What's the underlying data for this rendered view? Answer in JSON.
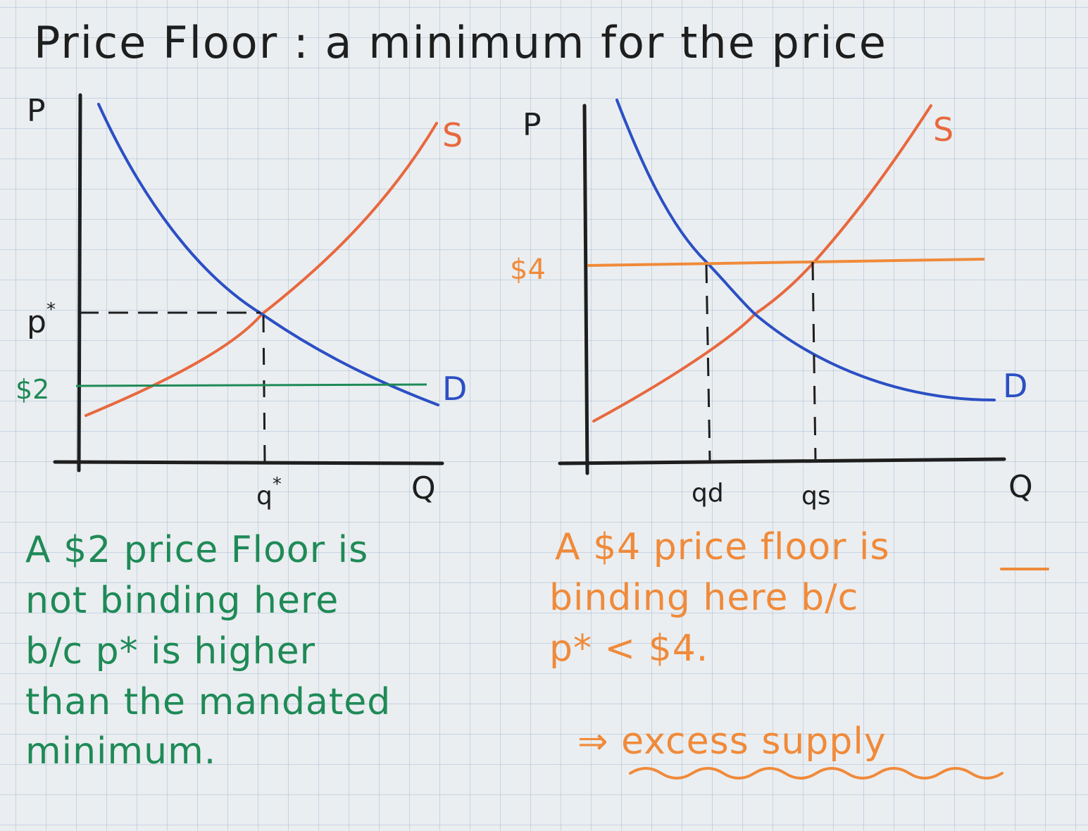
{
  "title": "Price Floor : a minimum for the price",
  "left_chart": {
    "y_label": "P",
    "x_label": "Q",
    "supply_label": "S",
    "demand_label": "D",
    "price_label": "p",
    "price_label_sup": "*",
    "quantity_label": "q",
    "quantity_label_sup": "*",
    "floor_label": "$2",
    "floor_color": "#1f8a57",
    "note_lines": [
      "A $2 price Floor is",
      "not binding here",
      "b/c p* is higher",
      "than the mandated",
      "minimum."
    ]
  },
  "right_chart": {
    "y_label": "P",
    "x_label": "Q",
    "supply_label": "S",
    "demand_label": "D",
    "floor_label": "$4",
    "floor_color": "#f08a3a",
    "qd_label": "qd",
    "qs_label": "qs",
    "note_lines": [
      "A $4 price floor is",
      "binding here b/c",
      "p* < $4."
    ],
    "conclusion": "⇒ excess supply"
  },
  "colors": {
    "supply": "#e8683e",
    "demand": "#2b4fc4",
    "axes": "#1e1e1e",
    "green_note": "#1f8a57",
    "orange_note": "#f08a3a"
  }
}
